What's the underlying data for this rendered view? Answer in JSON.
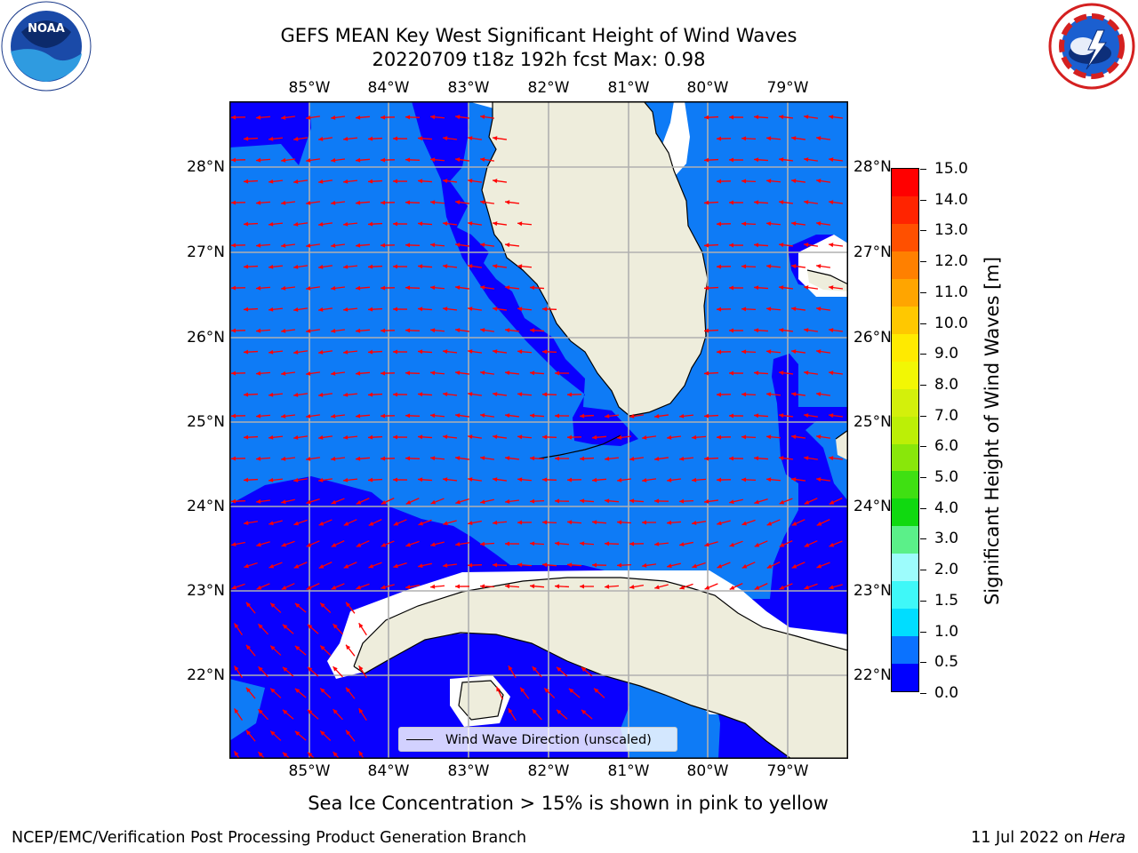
{
  "title": {
    "line1": "GEFS MEAN Key West Significant Height of Wind Waves",
    "line2": "20220709 t18z 192h fcst   Max: 0.98"
  },
  "logos": {
    "left": "noaa-logo",
    "right": "nws-logo"
  },
  "map": {
    "lon_labels": [
      "85°W",
      "84°W",
      "83°W",
      "82°W",
      "81°W",
      "80°W",
      "79°W"
    ],
    "lat_labels": [
      "28°N",
      "27°N",
      "26°N",
      "25°N",
      "24°N",
      "23°N",
      "22°N"
    ],
    "colors": {
      "land": "#eeeddc",
      "sea_low": "#0a00fe",
      "sea_mid": "#0e7bf6",
      "arrow": "#ff0000",
      "grid": "#b0b0b0"
    }
  },
  "legend": {
    "label": "Wind Wave Direction (unscaled)"
  },
  "colorbar": {
    "title": "Significant Height of Wind Waves [m]",
    "ticks": [
      "15.0",
      "14.0",
      "13.0",
      "12.0",
      "11.0",
      "10.0",
      "9.0",
      "8.0",
      "7.0",
      "6.0",
      "5.0",
      "4.0",
      "3.0",
      "2.0",
      "1.5",
      "1.0",
      "0.5",
      "0.0"
    ],
    "colors": [
      "#0000ff",
      "#0a72ff",
      "#00ddff",
      "#3ff8f8",
      "#9dfcfc",
      "#5bf089",
      "#10d910",
      "#3fe012",
      "#89e70a",
      "#bcef06",
      "#d3f00b",
      "#f2f704",
      "#ffea00",
      "#ffc800",
      "#ffa500",
      "#ff8000",
      "#ff5000",
      "#ff2400",
      "#ff0000"
    ]
  },
  "footnote": "Sea Ice Concentration > 15% is shown in pink to yellow",
  "credit_left": "NCEP/EMC/Verification Post Processing Product Generation Branch",
  "credit_right_date": "11 Jul 2022 on",
  "credit_right_host": "Hera"
}
